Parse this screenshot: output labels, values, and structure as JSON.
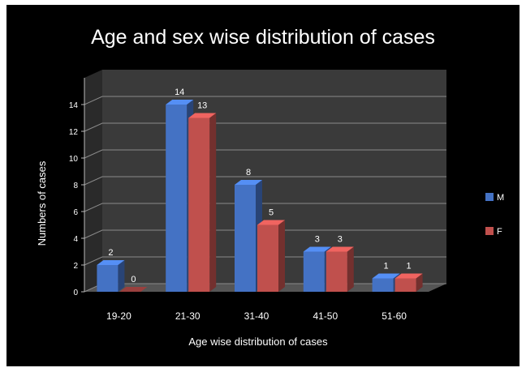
{
  "chart_data": {
    "type": "bar",
    "title": "Age and sex wise distribution of cases",
    "xlabel": "Age wise distribution of cases",
    "ylabel": "Numbers of cases",
    "categories": [
      "19-20",
      "21-30",
      "31-40",
      "41-50",
      "51-60"
    ],
    "series": [
      {
        "name": "M",
        "values": [
          2,
          14,
          8,
          3,
          1
        ],
        "color": "#4472C4"
      },
      {
        "name": "F",
        "values": [
          0,
          13,
          5,
          3,
          1
        ],
        "color": "#C0504D"
      }
    ],
    "ylim": [
      0,
      16
    ],
    "yticks": [
      0,
      2,
      4,
      6,
      8,
      10,
      12,
      14
    ],
    "grid": true,
    "legend_position": "right",
    "style": "3d-clustered-column",
    "background": "#000000"
  }
}
